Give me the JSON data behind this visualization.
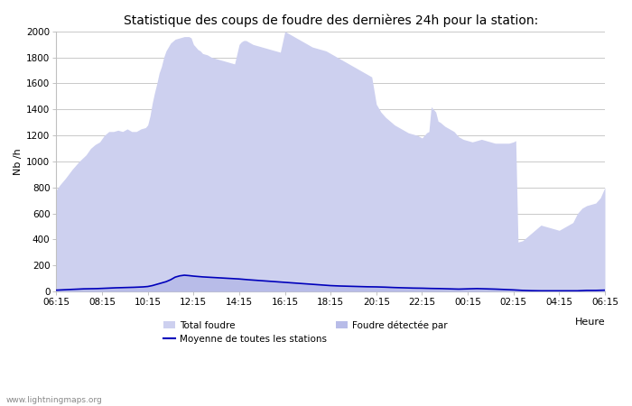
{
  "title": "Statistique des coups de foudre des dernières 24h pour la station:",
  "xlabel": "Heure",
  "ylabel": "Nb /h",
  "tick_labels": [
    "06:15",
    "08:15",
    "10:15",
    "12:15",
    "14:15",
    "16:15",
    "18:15",
    "20:15",
    "22:15",
    "00:15",
    "02:15",
    "04:15",
    "06:15"
  ],
  "ylim": [
    0,
    2000
  ],
  "yticks": [
    0,
    200,
    400,
    600,
    800,
    1000,
    1200,
    1400,
    1600,
    1800,
    2000
  ],
  "area_color": "#cdd0ef",
  "area_color2": "#b8bce8",
  "line_color": "#0000bb",
  "grid_color": "#c0c0c0",
  "watermark": "www.lightningmaps.org",
  "legend_label1": "Total foudre",
  "legend_label2": "Foudre détectée par",
  "legend_label3": "Moyenne de toutes les stations",
  "tf_x": [
    0,
    0.08,
    0.2,
    0.35,
    0.5,
    0.65,
    0.75,
    0.85,
    0.95,
    1.05,
    1.15,
    1.25,
    1.35,
    1.45,
    1.55,
    1.65,
    1.75,
    1.85,
    1.95,
    2.0,
    2.05,
    2.1,
    2.15,
    2.2,
    2.25,
    2.3,
    2.35,
    2.4,
    2.5,
    2.6,
    2.7,
    2.8,
    2.9,
    2.95,
    3.0,
    3.05,
    3.1,
    3.15,
    3.2,
    3.3,
    3.4,
    3.5,
    3.6,
    3.7,
    3.8,
    3.9,
    4.0,
    4.05,
    4.1,
    4.15,
    4.2,
    4.3,
    4.4,
    4.5,
    4.6,
    4.7,
    4.8,
    4.9,
    5.0,
    5.05,
    5.1,
    5.15,
    5.2,
    5.25,
    5.3,
    5.4,
    5.5,
    5.6,
    5.7,
    5.8,
    5.9,
    6.0,
    6.1,
    6.2,
    6.3,
    6.4,
    6.5,
    6.6,
    6.7,
    6.8,
    6.9,
    7.0,
    7.1,
    7.2,
    7.3,
    7.4,
    7.5,
    7.6,
    7.7,
    7.8,
    7.9,
    8.0,
    8.05,
    8.1,
    8.15,
    8.2,
    8.3,
    8.35,
    8.4,
    8.5,
    8.6,
    8.7,
    8.8,
    8.9,
    9.0,
    9.1,
    9.2,
    9.3,
    9.4,
    9.5,
    9.6,
    9.7,
    9.8,
    9.9,
    10.0,
    10.05,
    10.1,
    10.2,
    10.3,
    10.4,
    10.5,
    10.6,
    10.7,
    10.8,
    10.9,
    11.0,
    11.1,
    11.2,
    11.3,
    11.4,
    11.5,
    11.6,
    11.7,
    11.8,
    11.9,
    12.0
  ],
  "tf_y": [
    780,
    820,
    870,
    940,
    1000,
    1050,
    1100,
    1130,
    1150,
    1200,
    1230,
    1230,
    1240,
    1230,
    1250,
    1230,
    1230,
    1250,
    1260,
    1280,
    1350,
    1450,
    1530,
    1600,
    1680,
    1730,
    1800,
    1850,
    1910,
    1940,
    1950,
    1960,
    1960,
    1950,
    1900,
    1880,
    1860,
    1850,
    1830,
    1820,
    1800,
    1790,
    1780,
    1770,
    1760,
    1750,
    1900,
    1920,
    1930,
    1930,
    1920,
    1900,
    1890,
    1880,
    1870,
    1860,
    1850,
    1840,
    2000,
    1990,
    1980,
    1970,
    1960,
    1950,
    1940,
    1920,
    1900,
    1880,
    1870,
    1860,
    1850,
    1830,
    1810,
    1790,
    1770,
    1750,
    1730,
    1710,
    1690,
    1670,
    1650,
    1440,
    1380,
    1340,
    1310,
    1280,
    1260,
    1240,
    1220,
    1210,
    1200,
    1180,
    1200,
    1220,
    1230,
    1420,
    1380,
    1310,
    1300,
    1270,
    1250,
    1230,
    1190,
    1170,
    1160,
    1150,
    1160,
    1170,
    1160,
    1150,
    1140,
    1140,
    1140,
    1140,
    1150,
    1160,
    380,
    390,
    420,
    450,
    480,
    510,
    500,
    490,
    480,
    470,
    490,
    510,
    530,
    600,
    640,
    660,
    670,
    680,
    720,
    800
  ],
  "mv_x": [
    0,
    0.3,
    0.6,
    0.9,
    1.1,
    1.3,
    1.5,
    1.7,
    1.9,
    2.0,
    2.1,
    2.2,
    2.3,
    2.4,
    2.5,
    2.55,
    2.6,
    2.7,
    2.8,
    2.9,
    3.0,
    3.1,
    3.2,
    3.3,
    3.4,
    3.5,
    3.6,
    3.7,
    3.8,
    3.9,
    4.0,
    4.2,
    4.4,
    4.6,
    4.8,
    5.0,
    5.2,
    5.4,
    5.6,
    5.8,
    6.0,
    6.2,
    6.4,
    6.6,
    6.8,
    7.0,
    7.2,
    7.4,
    7.6,
    7.8,
    8.0,
    8.2,
    8.4,
    8.6,
    8.8,
    9.0,
    9.2,
    9.4,
    9.6,
    9.8,
    10.0,
    10.2,
    10.4,
    10.6,
    10.8,
    11.0,
    11.2,
    11.4,
    11.6,
    11.8,
    12.0
  ],
  "mv_y": [
    10,
    15,
    20,
    22,
    25,
    28,
    30,
    32,
    35,
    38,
    45,
    55,
    65,
    75,
    90,
    100,
    110,
    120,
    125,
    122,
    118,
    115,
    112,
    110,
    108,
    106,
    104,
    102,
    100,
    98,
    96,
    90,
    85,
    80,
    75,
    70,
    65,
    60,
    55,
    50,
    45,
    42,
    40,
    38,
    36,
    35,
    33,
    30,
    28,
    26,
    25,
    23,
    22,
    20,
    18,
    20,
    22,
    20,
    18,
    15,
    12,
    8,
    6,
    5,
    5,
    5,
    5,
    5,
    8,
    8,
    10
  ]
}
